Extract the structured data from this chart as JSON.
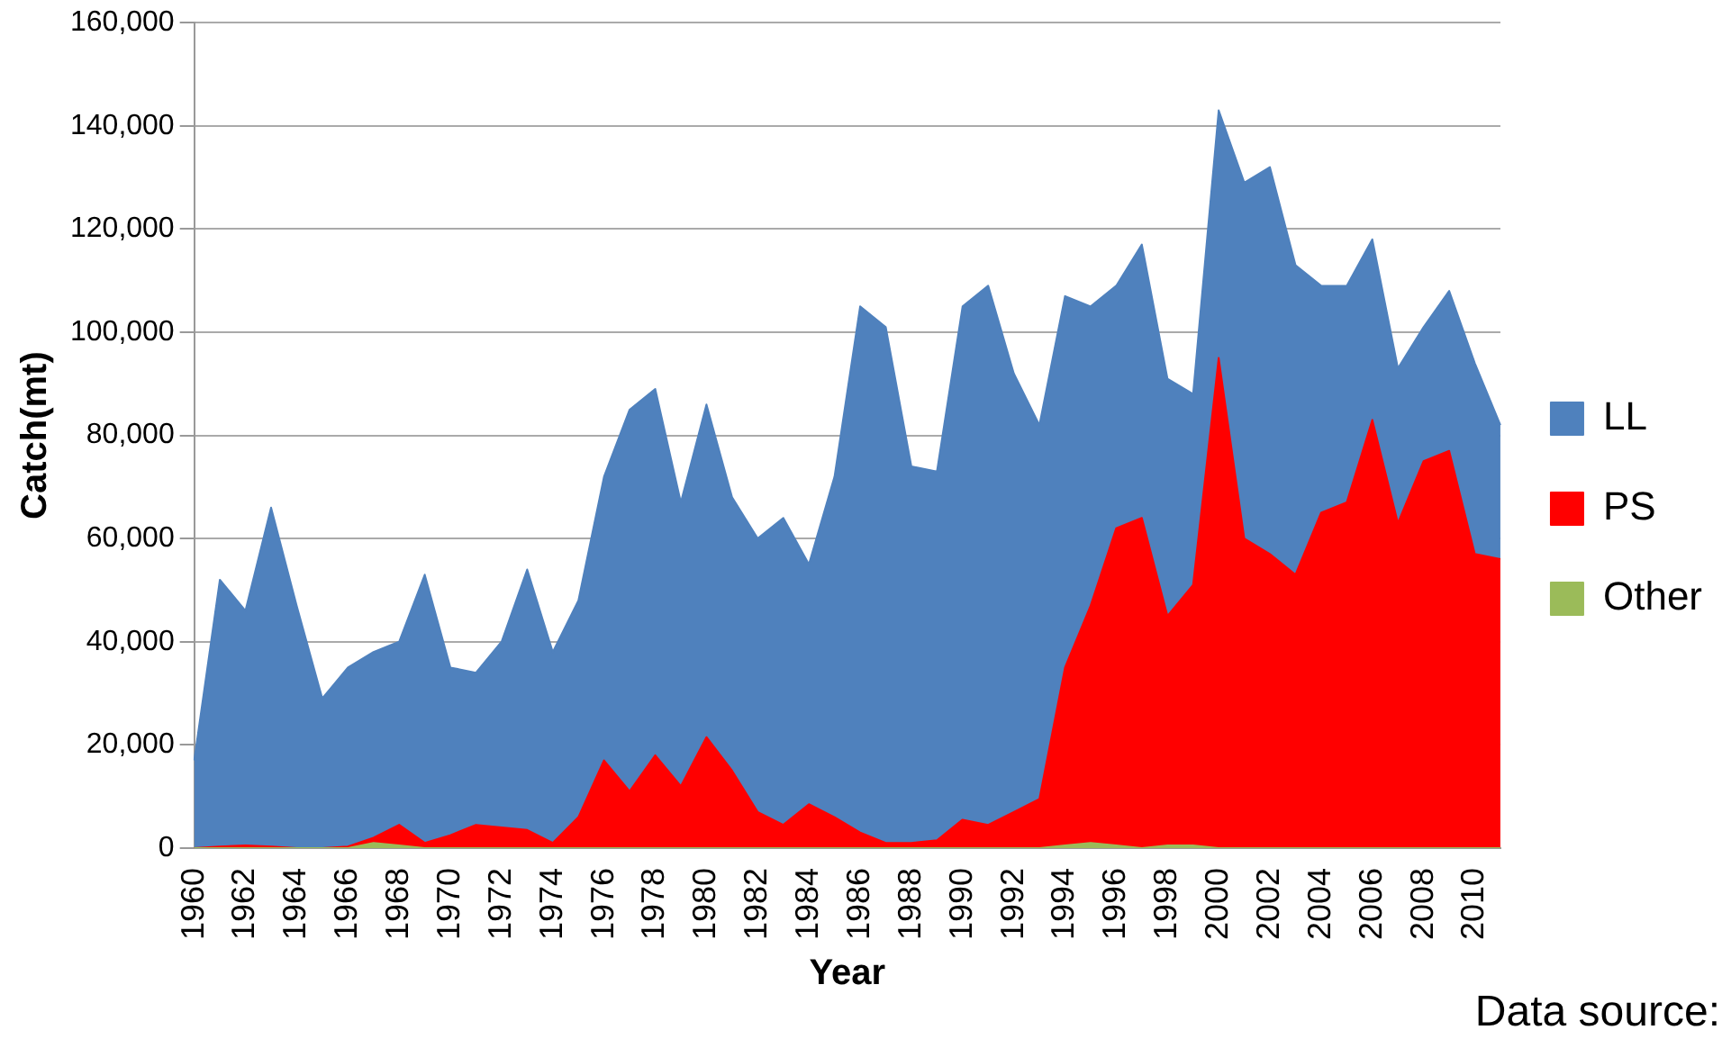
{
  "chart_data": {
    "type": "area",
    "stacked": true,
    "xlabel": "Year",
    "ylabel": "Catch(mt)",
    "categories": [
      "1960",
      null,
      "1962",
      null,
      "1964",
      null,
      "1966",
      null,
      "1968",
      null,
      "1970",
      null,
      "1972",
      null,
      "1974",
      null,
      "1976",
      null,
      "1978",
      null,
      "1980",
      null,
      "1982",
      null,
      "1984",
      null,
      "1986",
      null,
      "1988",
      null,
      "1990",
      null,
      "1992",
      null,
      "1994",
      null,
      "1996",
      null,
      "1998",
      null,
      "2000",
      null,
      "2002",
      null,
      "2004",
      null,
      "2006",
      null,
      "2008",
      null,
      "2010",
      null
    ],
    "series": [
      {
        "name": "Other",
        "color": "#9bbb59",
        "values": [
          0,
          0,
          0,
          0,
          0,
          0,
          0,
          1000,
          500,
          0,
          0,
          0,
          0,
          0,
          0,
          0,
          0,
          0,
          0,
          0,
          0,
          0,
          0,
          0,
          0,
          0,
          0,
          0,
          0,
          0,
          0,
          0,
          0,
          0,
          500,
          1000,
          500,
          0,
          500,
          500,
          0,
          0,
          0,
          0,
          0,
          0,
          0,
          0,
          0,
          0,
          0,
          0
        ]
      },
      {
        "name": "PS",
        "color": "#ff0000",
        "values": [
          0,
          300,
          500,
          300,
          0,
          0,
          300,
          1000,
          4000,
          1000,
          2500,
          4500,
          4000,
          3500,
          1000,
          6000,
          17000,
          11000,
          18000,
          12000,
          21500,
          15000,
          7000,
          4500,
          8500,
          6000,
          3000,
          1000,
          1000,
          1500,
          5500,
          4500,
          7000,
          9500,
          34500,
          46000,
          61500,
          64000,
          44500,
          50500,
          95000,
          60000,
          57000,
          53000,
          65000,
          67000,
          83000,
          63000,
          75000,
          77000,
          57000,
          56000
        ]
      },
      {
        "name": "LL",
        "color": "#4f81bd",
        "values": [
          17000,
          51700,
          45500,
          65700,
          47000,
          29000,
          34700,
          36000,
          35500,
          52000,
          32500,
          29500,
          36000,
          50500,
          37000,
          42000,
          55000,
          74000,
          71000,
          55000,
          64500,
          53000,
          53000,
          59500,
          46500,
          66000,
          102000,
          100000,
          73000,
          71500,
          99500,
          104500,
          85000,
          72500,
          72000,
          58000,
          47000,
          53000,
          46000,
          37000,
          48000,
          69000,
          75000,
          60000,
          44000,
          42000,
          35000,
          30000,
          26000,
          31000,
          37000,
          26000
        ]
      }
    ],
    "ylim": [
      0,
      160000
    ],
    "yticks": [
      0,
      {
        "value": 20000,
        "label": "20,000"
      },
      {
        "value": 40000,
        "label": "40,000"
      },
      {
        "value": 60000,
        "label": "60,000"
      },
      {
        "value": 80000,
        "label": "80,000"
      },
      {
        "value": 100000,
        "label": "100,000"
      },
      {
        "value": 120000,
        "label": "120,000"
      },
      {
        "value": 140000,
        "label": "140,000"
      },
      {
        "value": 160000,
        "label": "160,000"
      }
    ],
    "grid": "y",
    "legend": "right",
    "marker": "none",
    "annotations": [
      "Data source:"
    ]
  }
}
